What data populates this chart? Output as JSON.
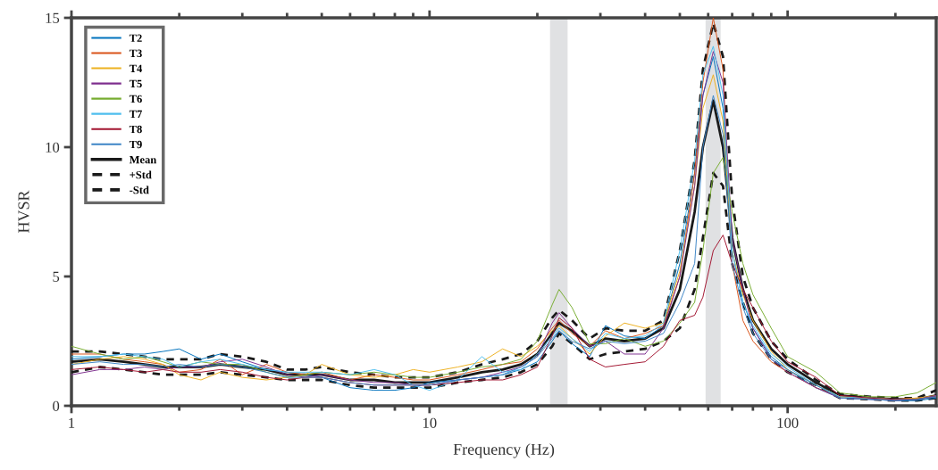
{
  "chart_data": {
    "type": "line",
    "xlabel": "Frequency (Hz)",
    "ylabel": "HVSR",
    "log": "x",
    "xlim": [
      1,
      260
    ],
    "xticks": [
      1,
      10,
      100
    ],
    "ylim": [
      0,
      15
    ],
    "yticks": [
      0,
      5,
      10,
      15
    ],
    "grid": false,
    "legend": "top left",
    "x": [
      1,
      1.2,
      1.4,
      1.6,
      1.8,
      2,
      2.3,
      2.6,
      3,
      3.5,
      4,
      4.5,
      5,
      6,
      7,
      8,
      9,
      10,
      12,
      14,
      16,
      18,
      20,
      22,
      23,
      25,
      28,
      31,
      35,
      40,
      45,
      50,
      55,
      58,
      62,
      66,
      70,
      75,
      80,
      90,
      100,
      120,
      140,
      170,
      200,
      230,
      260
    ],
    "bands": [
      {
        "axis": "x",
        "from": 21.7,
        "to": 24.3,
        "color": "#e0e1e3"
      },
      {
        "axis": "x",
        "from": 59,
        "to": 65,
        "color": "#e0e1e3"
      }
    ],
    "series": [
      {
        "name": "T2",
        "color": "#0072bd",
        "values": [
          1.8,
          1.9,
          2.0,
          2.0,
          2.1,
          2.2,
          1.8,
          2.0,
          1.7,
          1.4,
          1.3,
          1.2,
          1.1,
          0.7,
          0.6,
          0.6,
          0.7,
          0.9,
          1.0,
          1.1,
          1.2,
          1.4,
          1.7,
          2.5,
          2.9,
          2.4,
          1.9,
          3.1,
          2.7,
          2.6,
          3.1,
          5.5,
          9.0,
          12.0,
          13.5,
          11.5,
          6.0,
          4.0,
          3.0,
          1.9,
          1.4,
          0.7,
          0.3,
          0.25,
          0.2,
          0.2,
          0.3
        ]
      },
      {
        "name": "T3",
        "color": "#d95319",
        "values": [
          2.0,
          2.0,
          1.8,
          1.7,
          1.6,
          1.3,
          1.4,
          1.8,
          1.2,
          1.6,
          1.3,
          1.2,
          1.3,
          1.0,
          1.2,
          1.1,
          1.0,
          1.0,
          1.2,
          1.4,
          1.6,
          1.7,
          2.2,
          3.0,
          3.3,
          2.8,
          2.3,
          2.9,
          2.6,
          2.8,
          3.1,
          5.0,
          9.0,
          12.5,
          15.0,
          13.0,
          5.5,
          3.3,
          2.5,
          1.7,
          1.3,
          0.7,
          0.35,
          0.3,
          0.25,
          0.3,
          0.35
        ]
      },
      {
        "name": "T4",
        "color": "#edb120",
        "values": [
          1.6,
          1.8,
          1.9,
          1.8,
          1.6,
          1.2,
          1.0,
          1.3,
          1.1,
          1.0,
          1.1,
          1.2,
          1.6,
          1.2,
          1.1,
          1.2,
          1.4,
          1.3,
          1.5,
          1.7,
          2.2,
          1.9,
          2.3,
          2.9,
          3.1,
          2.6,
          2.0,
          2.7,
          3.2,
          3.0,
          3.2,
          5.2,
          8.5,
          11.5,
          12.8,
          11.0,
          6.0,
          4.3,
          3.3,
          2.1,
          1.4,
          0.8,
          0.35,
          0.3,
          0.25,
          0.3,
          0.4
        ]
      },
      {
        "name": "T5",
        "color": "#7e2f8e",
        "values": [
          1.2,
          1.4,
          1.4,
          1.5,
          1.4,
          1.5,
          1.5,
          1.7,
          1.8,
          1.5,
          1.2,
          1.1,
          1.2,
          1.0,
          0.9,
          0.9,
          0.8,
          0.8,
          1.0,
          1.1,
          1.3,
          1.5,
          1.9,
          3.2,
          3.6,
          3.0,
          2.3,
          2.5,
          2.0,
          2.0,
          3.0,
          5.0,
          8.5,
          12.0,
          13.7,
          12.5,
          6.5,
          4.5,
          3.0,
          1.8,
          1.3,
          0.7,
          0.3,
          0.25,
          0.2,
          0.25,
          0.4
        ]
      },
      {
        "name": "T6",
        "color": "#77ac30",
        "values": [
          2.3,
          2.0,
          1.8,
          1.9,
          1.7,
          1.5,
          1.7,
          1.6,
          1.6,
          1.3,
          1.1,
          1.2,
          1.3,
          1.2,
          1.3,
          1.2,
          1.1,
          1.1,
          1.3,
          1.5,
          1.6,
          1.8,
          2.5,
          3.9,
          4.5,
          3.8,
          2.4,
          2.4,
          2.6,
          2.3,
          2.5,
          3.2,
          4.0,
          6.0,
          9.0,
          9.6,
          7.5,
          5.5,
          4.3,
          3.0,
          1.9,
          1.3,
          0.5,
          0.35,
          0.35,
          0.5,
          0.9
        ]
      },
      {
        "name": "T7",
        "color": "#4dbeee",
        "values": [
          1.9,
          1.9,
          2.0,
          1.9,
          1.8,
          1.5,
          1.7,
          1.8,
          1.6,
          1.4,
          1.3,
          1.3,
          1.3,
          1.2,
          1.4,
          1.2,
          0.8,
          0.6,
          1.0,
          1.9,
          1.3,
          1.4,
          2.0,
          2.7,
          3.0,
          2.6,
          2.1,
          2.8,
          2.6,
          2.7,
          3.2,
          6.0,
          9.5,
          12.8,
          13.9,
          12.0,
          6.0,
          4.0,
          3.1,
          2.0,
          1.5,
          0.8,
          0.35,
          0.3,
          0.25,
          0.25,
          0.35
        ]
      },
      {
        "name": "T8",
        "color": "#a2142f",
        "values": [
          1.4,
          1.5,
          1.4,
          1.3,
          1.4,
          1.3,
          1.3,
          1.4,
          1.3,
          1.1,
          1.0,
          1.1,
          1.1,
          0.9,
          0.8,
          0.8,
          0.8,
          0.8,
          0.9,
          1.0,
          1.0,
          1.2,
          1.5,
          2.7,
          3.4,
          3.0,
          1.8,
          1.5,
          1.6,
          1.7,
          2.3,
          3.3,
          3.5,
          4.2,
          6.0,
          6.6,
          5.5,
          4.5,
          3.8,
          2.5,
          1.7,
          1.1,
          0.4,
          0.3,
          0.25,
          0.25,
          0.35
        ]
      },
      {
        "name": "T9",
        "color": "#3d85c6",
        "values": [
          1.6,
          1.7,
          1.6,
          1.6,
          1.5,
          1.6,
          1.5,
          1.6,
          1.5,
          1.3,
          1.1,
          1.1,
          1.1,
          0.9,
          0.8,
          0.8,
          0.8,
          0.8,
          1.0,
          1.1,
          1.2,
          1.5,
          1.9,
          2.6,
          2.9,
          2.5,
          2.2,
          2.5,
          2.4,
          2.5,
          2.8,
          4.0,
          5.5,
          10.0,
          12.0,
          10.5,
          5.5,
          3.8,
          2.8,
          1.8,
          1.4,
          0.8,
          0.3,
          0.25,
          0.2,
          0.25,
          0.35
        ]
      },
      {
        "name": "Mean",
        "color": "#1a1a1a",
        "line_style": "solid",
        "values": [
          1.7,
          1.8,
          1.7,
          1.6,
          1.5,
          1.5,
          1.5,
          1.6,
          1.5,
          1.4,
          1.2,
          1.2,
          1.2,
          1.0,
          1.0,
          0.9,
          0.9,
          0.9,
          1.1,
          1.3,
          1.4,
          1.6,
          2.0,
          2.8,
          3.2,
          2.9,
          2.3,
          2.6,
          2.5,
          2.6,
          3.0,
          4.5,
          7.5,
          10.0,
          11.8,
          10.0,
          6.5,
          4.5,
          3.3,
          2.2,
          1.6,
          0.9,
          0.4,
          0.3,
          0.25,
          0.25,
          0.4
        ]
      },
      {
        "name": "+Std",
        "color": "#1a1a1a",
        "line_style": "dashed",
        "values": [
          2.1,
          2.1,
          2.0,
          1.9,
          1.8,
          1.8,
          1.8,
          2.0,
          1.9,
          1.7,
          1.4,
          1.4,
          1.5,
          1.3,
          1.2,
          1.1,
          1.1,
          1.1,
          1.3,
          1.6,
          1.8,
          2.0,
          2.5,
          3.4,
          3.7,
          3.3,
          2.6,
          3.0,
          2.9,
          2.9,
          3.3,
          6.0,
          9.5,
          13.0,
          14.8,
          13.5,
          8.0,
          5.0,
          3.8,
          2.5,
          1.8,
          1.0,
          0.45,
          0.35,
          0.3,
          0.3,
          0.6
        ]
      },
      {
        "name": "-Std",
        "color": "#1a1a1a",
        "line_style": "dashed",
        "values": [
          1.3,
          1.5,
          1.4,
          1.3,
          1.2,
          1.2,
          1.2,
          1.3,
          1.2,
          1.1,
          1.0,
          1.0,
          1.0,
          0.8,
          0.7,
          0.7,
          0.7,
          0.7,
          0.9,
          1.0,
          1.1,
          1.3,
          1.6,
          2.3,
          2.8,
          2.4,
          1.8,
          2.0,
          2.1,
          2.2,
          2.5,
          3.0,
          4.5,
          6.5,
          9.0,
          8.5,
          5.5,
          4.0,
          2.8,
          1.8,
          1.3,
          0.8,
          0.3,
          0.25,
          0.2,
          0.2,
          0.3
        ]
      }
    ]
  }
}
